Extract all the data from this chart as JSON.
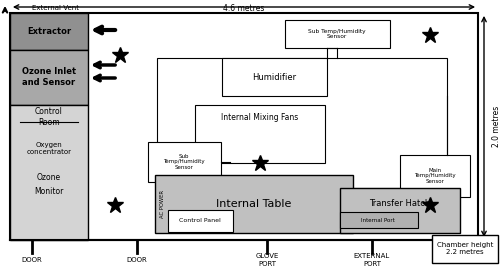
{
  "fig_width": 5.0,
  "fig_height": 2.68,
  "dpi": 100,
  "bg_color": "#ffffff",
  "title_text": "4.6 metres",
  "right_label": "2.0 metres",
  "bottom_right_label": "Chamber height\n2.2 metres",
  "extractor_label": "Extractor",
  "ozone_inlet_label": "Ozone Inlet\nand Sensor",
  "humidifier_label": "Humidifier",
  "internal_mixing_label": "Internal Mixing Fans",
  "internal_table_label": "Internal Table",
  "transfer_hatch_label": "Transfer Hatch",
  "sub_temp_top_label": "Sub Temp/Humidity\nSensor",
  "sub_temp_left_label": "Sub\nTemp/Humidity\nSensor",
  "main_temp_label": "Main\nTemp/Humidity\nSensor",
  "internal_port_label": "Internal Port",
  "control_panel_label": "Control Panel",
  "ac_power_label": "AC POWER",
  "control_room_label": "Control\nRoom",
  "oxygen_label": "Oxygen\nconcentrator",
  "ozone_label": "Ozone",
  "monitor_label": "Monitor",
  "external_vent_label": "External Vent",
  "light_gray": "#c8c8c8",
  "mid_gray": "#a8a8a8",
  "extractor_gray": "#909090",
  "control_gray": "#d4d4d4",
  "table_gray": "#c0c0c0",
  "hatch_gray": "#c0c0c0",
  "port_gray": "#b0b0b0"
}
